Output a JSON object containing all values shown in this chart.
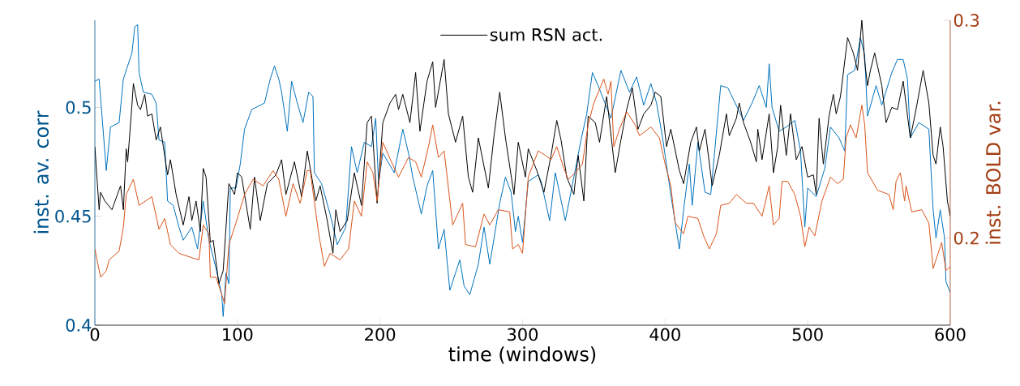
{
  "chart_data": {
    "type": "line",
    "xlabel": "time (windows)",
    "ylabel": "inst. av. corr",
    "y2label": "inst. BOLD var.",
    "xlim": [
      0,
      600
    ],
    "xticks": [
      0,
      100,
      200,
      300,
      400,
      500,
      600
    ],
    "ylim": [
      0.4,
      0.54
    ],
    "yticks": [
      0.4,
      0.45,
      0.5
    ],
    "y2lim": [
      0.16,
      0.3
    ],
    "y2ticks": [
      0.2,
      0.3
    ],
    "legend": "top",
    "series": [
      {
        "color": "#0072bd",
        "x": [
          0,
          3,
          8,
          11,
          17,
          20,
          26,
          28,
          30,
          31,
          34,
          40,
          43,
          45,
          49,
          51,
          55,
          59,
          62,
          68,
          72,
          76,
          80,
          85,
          89,
          90,
          92,
          94,
          95,
          99,
          102,
          105,
          110,
          119,
          123,
          126,
          129,
          131,
          135,
          138,
          142,
          146,
          150,
          153,
          154,
          159,
          165,
          170,
          176,
          180,
          184,
          189,
          194,
          197,
          199,
          202,
          210,
          216,
          220,
          223,
          229,
          233,
          237,
          241,
          245,
          249,
          256,
          259,
          263,
          269,
          273,
          277,
          284,
          288,
          292,
          295,
          297,
          300,
          304,
          311,
          313,
          319,
          323,
          330,
          336,
          341,
          345,
          349,
          353,
          356,
          362,
          369,
          375,
          380,
          385,
          390,
          394,
          398,
          404,
          410,
          413,
          417,
          419,
          423,
          428,
          432,
          439,
          444,
          455,
          461,
          466,
          471,
          473,
          475,
          480,
          485,
          491,
          495,
          498,
          500,
          506,
          512,
          516,
          522,
          526,
          528,
          533,
          537,
          540,
          542,
          548,
          552,
          559,
          563,
          567,
          570,
          572,
          578,
          585,
          588,
          590,
          593,
          596,
          597,
          600
        ],
        "values": [
          0.512,
          0.513,
          0.471,
          0.491,
          0.493,
          0.513,
          0.525,
          0.537,
          0.538,
          0.516,
          0.507,
          0.506,
          0.502,
          0.485,
          0.484,
          0.457,
          0.455,
          0.445,
          0.439,
          0.445,
          0.435,
          0.457,
          0.439,
          0.426,
          0.414,
          0.404,
          0.424,
          0.419,
          0.463,
          0.463,
          0.474,
          0.49,
          0.499,
          0.502,
          0.513,
          0.519,
          0.513,
          0.507,
          0.489,
          0.512,
          0.502,
          0.493,
          0.507,
          0.505,
          0.47,
          0.465,
          0.451,
          0.437,
          0.445,
          0.482,
          0.47,
          0.484,
          0.482,
          0.495,
          0.465,
          0.479,
          0.47,
          0.49,
          0.479,
          0.468,
          0.451,
          0.464,
          0.471,
          0.435,
          0.444,
          0.416,
          0.43,
          0.418,
          0.414,
          0.428,
          0.445,
          0.428,
          0.456,
          0.468,
          0.461,
          0.443,
          0.45,
          0.438,
          0.466,
          0.469,
          0.466,
          0.448,
          0.47,
          0.448,
          0.468,
          0.485,
          0.497,
          0.516,
          0.51,
          0.505,
          0.495,
          0.517,
          0.507,
          0.514,
          0.501,
          0.511,
          0.502,
          0.487,
          0.46,
          0.435,
          0.453,
          0.474,
          0.455,
          0.484,
          0.461,
          0.46,
          0.51,
          0.509,
          0.494,
          0.502,
          0.51,
          0.5,
          0.52,
          0.5,
          0.489,
          0.491,
          0.494,
          0.48,
          0.445,
          0.463,
          0.459,
          0.472,
          0.491,
          0.486,
          0.48,
          0.515,
          0.517,
          0.532,
          0.524,
          0.496,
          0.51,
          0.501,
          0.516,
          0.522,
          0.522,
          0.513,
          0.486,
          0.493,
          0.49,
          0.453,
          0.44,
          0.453,
          0.44,
          0.42,
          0.415
        ]
      },
      {
        "name": "sum RSN act.",
        "color": "#000000",
        "x": [
          0,
          3,
          4,
          7,
          12,
          18,
          20,
          22,
          23,
          26,
          27,
          30,
          32,
          35,
          37,
          40,
          43,
          46,
          48,
          51,
          53,
          57,
          62,
          66,
          68,
          71,
          74,
          76,
          78,
          81,
          83,
          87,
          90,
          94,
          98,
          100,
          103,
          109,
          112,
          116,
          121,
          127,
          131,
          134,
          140,
          145,
          149,
          155,
          158,
          163,
          167,
          169,
          172,
          177,
          182,
          187,
          191,
          194,
          198,
          202,
          207,
          211,
          213,
          216,
          221,
          225,
          228,
          233,
          237,
          239,
          245,
          248,
          253,
          258,
          262,
          265,
          269,
          276,
          280,
          284,
          288,
          294,
          297,
          302,
          304,
          310,
          315,
          320,
          324,
          327,
          331,
          336,
          339,
          343,
          346,
          351,
          354,
          359,
          365,
          369,
          373,
          377,
          381,
          385,
          390,
          393,
          397,
          401,
          404,
          410,
          413,
          418,
          422,
          424,
          428,
          433,
          438,
          443,
          445,
          450,
          452,
          455,
          460,
          464,
          465,
          468,
          473,
          476,
          479,
          481,
          485,
          488,
          492,
          496,
          500,
          504,
          506,
          508,
          511,
          515,
          518,
          520,
          523,
          528,
          532,
          535,
          538,
          540,
          542,
          544,
          547,
          552,
          555,
          559,
          563,
          567,
          572,
          576,
          581,
          585,
          588,
          590,
          593,
          595,
          598,
          600
        ],
        "values": [
          0.482,
          0.453,
          0.461,
          0.457,
          0.453,
          0.464,
          0.453,
          0.481,
          0.475,
          0.501,
          0.511,
          0.501,
          0.499,
          0.506,
          0.496,
          0.497,
          0.485,
          0.491,
          0.482,
          0.469,
          0.476,
          0.46,
          0.446,
          0.459,
          0.448,
          0.457,
          0.443,
          0.472,
          0.468,
          0.438,
          0.439,
          0.419,
          0.425,
          0.465,
          0.46,
          0.47,
          0.468,
          0.444,
          0.468,
          0.448,
          0.465,
          0.469,
          0.476,
          0.46,
          0.475,
          0.459,
          0.48,
          0.457,
          0.464,
          0.448,
          0.433,
          0.453,
          0.443,
          0.448,
          0.47,
          0.455,
          0.493,
          0.496,
          0.456,
          0.493,
          0.502,
          0.506,
          0.499,
          0.506,
          0.493,
          0.516,
          0.489,
          0.512,
          0.521,
          0.5,
          0.522,
          0.497,
          0.484,
          0.496,
          0.468,
          0.461,
          0.486,
          0.463,
          0.487,
          0.507,
          0.486,
          0.46,
          0.484,
          0.468,
          0.481,
          0.471,
          0.461,
          0.478,
          0.494,
          0.485,
          0.468,
          0.46,
          0.478,
          0.457,
          0.496,
          0.493,
          0.484,
          0.505,
          0.47,
          0.485,
          0.499,
          0.509,
          0.49,
          0.497,
          0.501,
          0.507,
          0.505,
          0.482,
          0.49,
          0.471,
          0.465,
          0.484,
          0.491,
          0.48,
          0.49,
          0.464,
          0.478,
          0.497,
          0.487,
          0.495,
          0.502,
          0.493,
          0.484,
          0.475,
          0.49,
          0.476,
          0.497,
          0.47,
          0.482,
          0.501,
          0.478,
          0.497,
          0.476,
          0.482,
          0.468,
          0.469,
          0.46,
          0.495,
          0.474,
          0.496,
          0.506,
          0.497,
          0.505,
          0.532,
          0.525,
          0.517,
          0.54,
          0.521,
          0.51,
          0.517,
          0.525,
          0.51,
          0.493,
          0.5,
          0.499,
          0.512,
          0.486,
          0.499,
          0.517,
          0.502,
          0.478,
          0.474,
          0.491,
          0.482,
          0.457,
          0.45
        ]
      },
      {
        "color": "#d95319",
        "axis": "y2",
        "x": [
          0,
          4,
          8,
          10,
          17,
          20,
          22,
          27,
          31,
          40,
          45,
          49,
          53,
          59,
          68,
          73,
          76,
          80,
          81,
          85,
          91,
          94,
          99,
          105,
          111,
          118,
          125,
          129,
          134,
          139,
          144,
          149,
          151,
          157,
          161,
          165,
          172,
          178,
          182,
          187,
          191,
          195,
          198,
          202,
          208,
          213,
          220,
          225,
          229,
          234,
          237,
          241,
          245,
          251,
          258,
          260,
          267,
          273,
          277,
          283,
          291,
          293,
          297,
          300,
          304,
          311,
          316,
          320,
          324,
          329,
          332,
          337,
          342,
          346,
          350,
          357,
          360,
          362,
          364,
          368,
          373,
          379,
          382,
          390,
          396,
          400,
          404,
          407,
          413,
          416,
          423,
          427,
          431,
          436,
          439,
          445,
          450,
          457,
          462,
          468,
          473,
          476,
          480,
          482,
          486,
          491,
          495,
          498,
          501,
          505,
          510,
          516,
          521,
          525,
          527,
          530,
          534,
          538,
          540,
          542,
          549,
          557,
          560,
          562,
          565,
          568,
          569,
          573,
          580,
          585,
          588,
          592,
          594,
          597,
          600
        ],
        "values": [
          0.195,
          0.182,
          0.185,
          0.19,
          0.194,
          0.205,
          0.22,
          0.227,
          0.215,
          0.219,
          0.204,
          0.209,
          0.197,
          0.193,
          0.191,
          0.19,
          0.206,
          0.202,
          0.182,
          0.182,
          0.17,
          0.197,
          0.207,
          0.22,
          0.227,
          0.224,
          0.231,
          0.227,
          0.21,
          0.225,
          0.216,
          0.231,
          0.231,
          0.202,
          0.187,
          0.193,
          0.19,
          0.195,
          0.217,
          0.21,
          0.235,
          0.23,
          0.217,
          0.244,
          0.235,
          0.228,
          0.237,
          0.235,
          0.228,
          0.242,
          0.252,
          0.237,
          0.24,
          0.206,
          0.216,
          0.197,
          0.196,
          0.211,
          0.206,
          0.213,
          0.212,
          0.195,
          0.197,
          0.193,
          0.228,
          0.24,
          0.238,
          0.236,
          0.242,
          0.232,
          0.227,
          0.23,
          0.234,
          0.252,
          0.262,
          0.273,
          0.266,
          0.272,
          0.242,
          0.25,
          0.258,
          0.252,
          0.247,
          0.251,
          0.246,
          0.234,
          0.224,
          0.207,
          0.202,
          0.21,
          0.209,
          0.201,
          0.195,
          0.202,
          0.215,
          0.216,
          0.22,
          0.216,
          0.216,
          0.21,
          0.224,
          0.206,
          0.209,
          0.226,
          0.226,
          0.22,
          0.21,
          0.196,
          0.205,
          0.201,
          0.217,
          0.228,
          0.225,
          0.227,
          0.246,
          0.252,
          0.246,
          0.261,
          0.252,
          0.23,
          0.222,
          0.22,
          0.213,
          0.226,
          0.23,
          0.217,
          0.224,
          0.212,
          0.213,
          0.207,
          0.186,
          0.194,
          0.198,
          0.185,
          0.187
        ]
      }
    ]
  }
}
